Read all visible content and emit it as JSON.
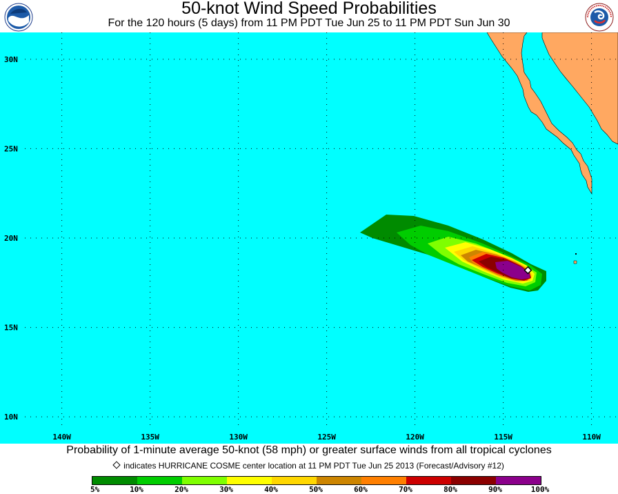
{
  "header": {
    "title": "50-knot Wind Speed Probabilities",
    "subtitle": "For the 120 hours (5 days) from 11 PM PDT Tue Jun 25 to 11 PM PDT Sun Jun 30",
    "left_logo": "NOAA",
    "right_logo": "NATIONAL WEATHER SERVICE"
  },
  "map": {
    "ocean_color": "#00ffff",
    "land_color": "#ffa861",
    "lat_range": [
      8.5,
      31.5
    ],
    "lon_range": [
      -143.5,
      -108.5
    ],
    "lat_ticks": [
      {
        "value": 30,
        "label": "30N"
      },
      {
        "value": 25,
        "label": "25N"
      },
      {
        "value": 20,
        "label": "20N"
      },
      {
        "value": 15,
        "label": "15N"
      },
      {
        "value": 10,
        "label": "10N"
      }
    ],
    "lon_ticks": [
      {
        "value": -140,
        "label": "140W"
      },
      {
        "value": -135,
        "label": "135W"
      },
      {
        "value": -130,
        "label": "130W"
      },
      {
        "value": -125,
        "label": "125W"
      },
      {
        "value": -120,
        "label": "120W"
      },
      {
        "value": -115,
        "label": "115W"
      },
      {
        "value": -110,
        "label": "110W"
      }
    ],
    "storm_center": {
      "lon": -113.6,
      "lat": 18.2
    }
  },
  "footer": {
    "caption": "Probability of 1-minute average 50-knot (58 mph) or greater surface winds from all tropical cyclones",
    "note": "indicates HURRICANE COSME center location at 11 PM PDT Tue Jun 25 2013 (Forecast/Advisory #12)"
  },
  "legend": {
    "colors": [
      "#008b00",
      "#00cd00",
      "#7fff00",
      "#ffff00",
      "#ffd700",
      "#cd8500",
      "#ff7f00",
      "#cd0000",
      "#8b0000",
      "#8b008b"
    ],
    "labels": [
      "5%",
      "10%",
      "20%",
      "30%",
      "40%",
      "50%",
      "60%",
      "70%",
      "80%",
      "90%",
      "100%"
    ]
  }
}
